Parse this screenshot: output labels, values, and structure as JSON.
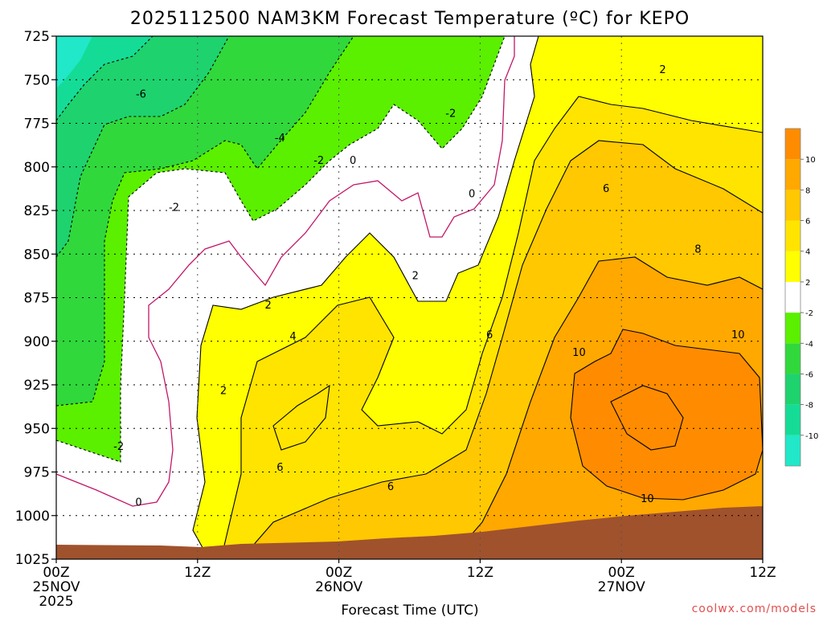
{
  "chart_data": {
    "type": "heatmap",
    "title": "2025112500 NAM3KM Forecast Temperature (ºC) for KEPO",
    "xlabel": "Forecast Time (UTC)",
    "ylabel": "",
    "y_ticks": [
      725,
      750,
      775,
      800,
      825,
      850,
      875,
      900,
      925,
      950,
      975,
      1000,
      1025
    ],
    "ylim": [
      725,
      1025
    ],
    "x_ticks": [
      {
        "label": "00Z",
        "sub": "25NOV",
        "sub2": "2025",
        "hour": 0
      },
      {
        "label": "12Z",
        "sub": "",
        "sub2": "",
        "hour": 12
      },
      {
        "label": "00Z",
        "sub": "26NOV",
        "sub2": "",
        "hour": 24
      },
      {
        "label": "12Z",
        "sub": "",
        "sub2": "",
        "hour": 36
      },
      {
        "label": "00Z",
        "sub": "27NOV",
        "sub2": "",
        "hour": 48
      },
      {
        "label": "12Z",
        "sub": "",
        "sub2": "",
        "hour": 60
      }
    ],
    "xlim": [
      0,
      60
    ],
    "colorbar": {
      "levels": [
        -12,
        -10,
        -8,
        -6,
        -4,
        -2,
        2,
        4,
        6,
        8,
        10,
        12
      ],
      "labels": [
        "-10",
        "-8",
        "-6",
        "-4",
        "-2",
        "2",
        "4",
        "6",
        "8",
        "10"
      ],
      "colors": [
        "#20e8c8",
        "#14dc96",
        "#1ed26e",
        "#30d83c",
        "#5af000",
        "#ffffff",
        "#ffff00",
        "#ffe400",
        "#ffc800",
        "#ffa800",
        "#ff8c00"
      ]
    },
    "contour_labels": [
      {
        "text": "-6",
        "hour": 7.2,
        "p": 758
      },
      {
        "text": "-4",
        "hour": 19,
        "p": 783
      },
      {
        "text": "-2",
        "hour": 22.3,
        "p": 796
      },
      {
        "text": "-2",
        "hour": 33.5,
        "p": 769
      },
      {
        "text": "-2",
        "hour": 10,
        "p": 823
      },
      {
        "text": "0",
        "hour": 25.2,
        "p": 796
      },
      {
        "text": "0",
        "hour": 35.3,
        "p": 815
      },
      {
        "text": "0",
        "hour": 7,
        "p": 992
      },
      {
        "text": "-2",
        "hour": 5.3,
        "p": 960
      },
      {
        "text": "2",
        "hour": 14.2,
        "p": 928
      },
      {
        "text": "2",
        "hour": 18,
        "p": 879
      },
      {
        "text": "2",
        "hour": 30.5,
        "p": 862
      },
      {
        "text": "2",
        "hour": 51.5,
        "p": 744
      },
      {
        "text": "4",
        "hour": 20.1,
        "p": 897
      },
      {
        "text": "6",
        "hour": 19,
        "p": 972
      },
      {
        "text": "6",
        "hour": 28.4,
        "p": 983
      },
      {
        "text": "6",
        "hour": 36.8,
        "p": 896
      },
      {
        "text": "6",
        "hour": 46.7,
        "p": 812
      },
      {
        "text": "8",
        "hour": 54.5,
        "p": 847
      },
      {
        "text": "10",
        "hour": 44.4,
        "p": 906
      },
      {
        "text": "10",
        "hour": 57.9,
        "p": 896
      },
      {
        "text": "10",
        "hour": 50.2,
        "p": 990
      }
    ],
    "grid": true
  },
  "credit": "coolwx.com/models"
}
